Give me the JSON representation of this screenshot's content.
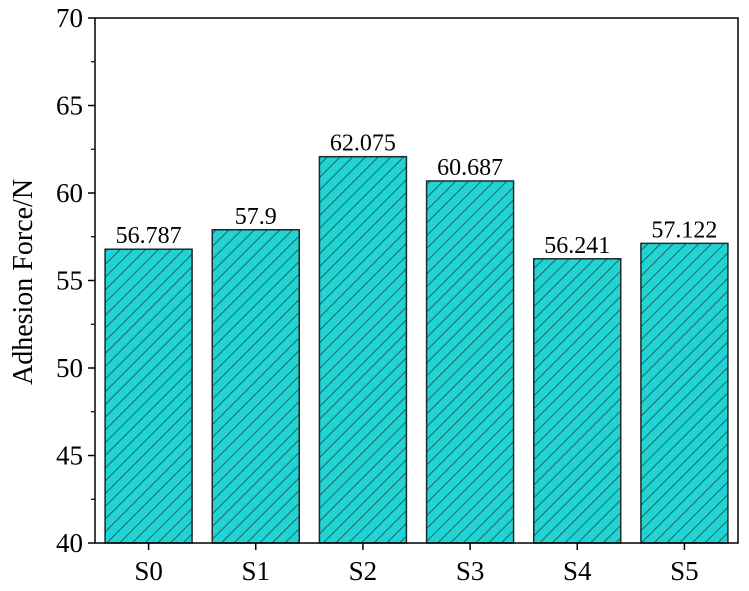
{
  "chart_data": {
    "type": "bar",
    "categories": [
      "S0",
      "S1",
      "S2",
      "S3",
      "S4",
      "S5"
    ],
    "values": [
      56.787,
      57.9,
      62.075,
      60.687,
      56.241,
      57.122
    ],
    "data_labels": [
      "56.787",
      "57.9",
      "62.075",
      "60.687",
      "56.241",
      "57.122"
    ],
    "ylabel": "Adhesion Force/N",
    "xlabel": "",
    "ylim": [
      40,
      70
    ],
    "yticks": [
      40,
      45,
      50,
      55,
      60,
      65,
      70
    ],
    "grid": false,
    "bar_fill": "#22d3d3",
    "bar_hatch_color": "#1a4a4a",
    "bar_edge": "#1f2a2a"
  }
}
